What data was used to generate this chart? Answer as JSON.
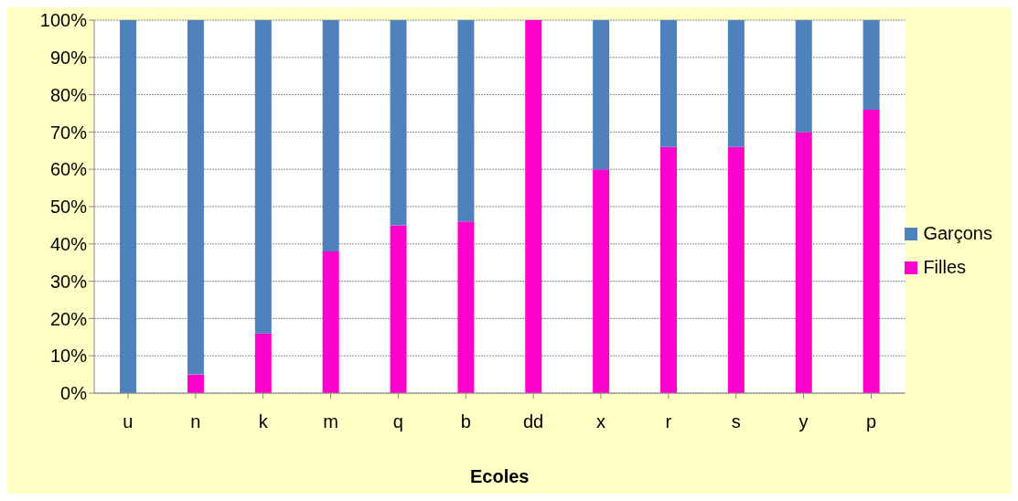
{
  "chart_data": {
    "type": "bar",
    "stacked": true,
    "xlabel": "Ecoles",
    "categories": [
      "u",
      "n",
      "k",
      "m",
      "q",
      "b",
      "dd",
      "x",
      "r",
      "s",
      "y",
      "p"
    ],
    "series": [
      {
        "name": "Filles",
        "color": "#ff00cc",
        "values": [
          0,
          5,
          16,
          38,
          45,
          46,
          100,
          60,
          66,
          66,
          70,
          76
        ]
      },
      {
        "name": "Garçons",
        "color": "#4f81bd",
        "values": [
          100,
          95,
          84,
          62,
          55,
          54,
          0,
          40,
          34,
          34,
          30,
          24
        ]
      }
    ],
    "ylim": [
      0,
      100
    ],
    "yticks": [
      {
        "value": 0,
        "label": "0%"
      },
      {
        "value": 10,
        "label": "10%"
      },
      {
        "value": 20,
        "label": "20%"
      },
      {
        "value": 30,
        "label": "30%"
      },
      {
        "value": 40,
        "label": "40%"
      },
      {
        "value": 50,
        "label": "50%"
      },
      {
        "value": 60,
        "label": "60%"
      },
      {
        "value": 70,
        "label": "70%"
      },
      {
        "value": 80,
        "label": "80%"
      },
      {
        "value": 90,
        "label": "90%"
      },
      {
        "value": 100,
        "label": "100%"
      }
    ],
    "grid": "y",
    "legend": "right"
  }
}
